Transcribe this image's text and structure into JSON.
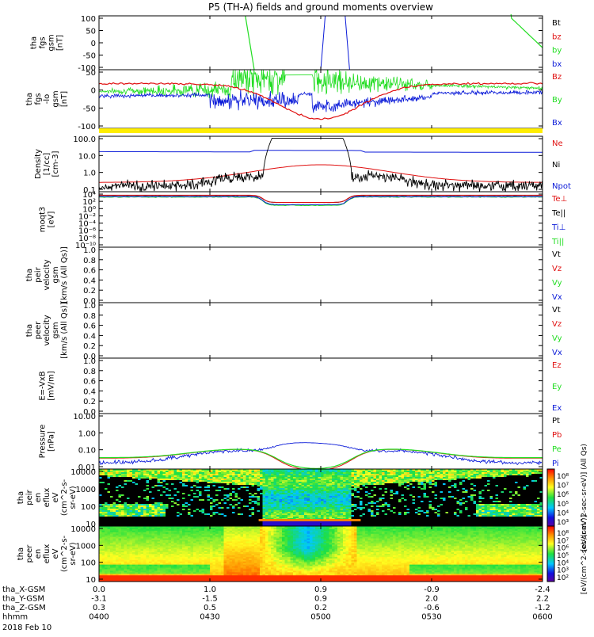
{
  "title": "P5 (TH-A) fields and ground moments overview",
  "date_label": "2018 Feb 10",
  "colors": {
    "black": "#000000",
    "red": "#e01010",
    "green": "#22dd22",
    "blue": "#0a1ad8",
    "yellow": "#ffee00"
  },
  "x_axis": {
    "rows": [
      {
        "label": "tha_X-GSM",
        "ticks": [
          "0.0",
          "1.0",
          "0.9",
          "-0.9",
          "-2.4"
        ]
      },
      {
        "label": "tha_Y-GSM",
        "ticks": [
          "-3.1",
          "-1.5",
          "0.9",
          "2.0",
          "2.2"
        ]
      },
      {
        "label": "tha_Z-GSM",
        "ticks": [
          "0.3",
          "0.5",
          "0.2",
          "-0.6",
          "-1.2"
        ]
      },
      {
        "label": "hhmm",
        "ticks": [
          "0400",
          "0430",
          "0500",
          "0530",
          "0600"
        ]
      }
    ]
  },
  "chart_data": [
    {
      "id": "fgs",
      "type": "line",
      "ylabel": [
        "tha",
        "fgs",
        "gsm",
        "[nT]"
      ],
      "ylim": [
        -100,
        100
      ],
      "yticks": [
        "100",
        "50",
        "0",
        "-50",
        "-100"
      ],
      "legend": [
        {
          "text": "Bt",
          "color": "black"
        },
        {
          "text": "bz",
          "color": "red"
        },
        {
          "text": "by",
          "color": "green"
        },
        {
          "text": "bx",
          "color": "blue"
        }
      ]
    },
    {
      "id": "fgs_lo",
      "type": "line",
      "ylabel": [
        "tha",
        "fgs",
        "-lo",
        "gsm",
        "[nT]"
      ],
      "ylim": [
        -130,
        60
      ],
      "yticks": [
        "50",
        "0",
        "-50",
        "-100"
      ],
      "legend": [
        {
          "text": "Bz",
          "color": "red"
        },
        {
          "text": "By",
          "color": "green"
        },
        {
          "text": "Bx",
          "color": "blue"
        }
      ]
    },
    {
      "id": "density",
      "type": "line",
      "yscale": "log",
      "ylabel": [
        "Density",
        "[1/cc]",
        "[cm-3]"
      ],
      "ylim": [
        0.05,
        200
      ],
      "yticks": [
        "100.0",
        "10.0",
        "1.0",
        "0.1"
      ],
      "legend": [
        {
          "text": "Ne",
          "color": "red"
        },
        {
          "text": "Ni",
          "color": "black"
        },
        {
          "text": "Npot",
          "color": "blue"
        }
      ]
    },
    {
      "id": "temp",
      "type": "line",
      "yscale": "log",
      "ylabel": [
        "moqt3",
        "[eV]"
      ],
      "yticks": [
        "10⁴",
        "10²",
        "10⁰",
        "10⁻²",
        "10⁻⁴",
        "10⁻⁶",
        "10⁻⁸",
        "10⁻¹⁰"
      ],
      "legend": [
        {
          "text": "Te⊥",
          "color": "red"
        },
        {
          "text": "Te||",
          "color": "black"
        },
        {
          "text": "Ti⊥",
          "color": "blue"
        },
        {
          "text": "Ti||",
          "color": "green"
        }
      ]
    },
    {
      "id": "peir_vel",
      "type": "line",
      "ylabel": [
        "tha",
        "peir",
        "velocity",
        "gsm",
        "[km/s (All Qs)]"
      ],
      "ylim": [
        0,
        1
      ],
      "yticks": [
        "1.0",
        "0.8",
        "0.6",
        "0.4",
        "0.2",
        "0.0"
      ],
      "legend": [
        {
          "text": "Vt",
          "color": "black"
        },
        {
          "text": "Vz",
          "color": "red"
        },
        {
          "text": "Vy",
          "color": "green"
        },
        {
          "text": "Vx",
          "color": "blue"
        }
      ]
    },
    {
      "id": "peer_vel",
      "type": "line",
      "ylabel": [
        "tha",
        "peer",
        "velocity",
        "gsm",
        "[km/s (All Qs)]"
      ],
      "ylim": [
        0,
        1
      ],
      "yticks": [
        "1.0",
        "0.8",
        "0.6",
        "0.4",
        "0.2",
        "0.0"
      ],
      "legend": [
        {
          "text": "Vt",
          "color": "black"
        },
        {
          "text": "Vz",
          "color": "red"
        },
        {
          "text": "Vy",
          "color": "green"
        },
        {
          "text": "Vx",
          "color": "blue"
        }
      ]
    },
    {
      "id": "efield",
      "type": "line",
      "ylabel": [
        "E=-VxB",
        "[mV/m]"
      ],
      "ylim": [
        0,
        1
      ],
      "yticks": [
        "1.0",
        "0.8",
        "0.6",
        "0.4",
        "0.2",
        "0.0"
      ],
      "legend": [
        {
          "text": "Ez",
          "color": "red"
        },
        {
          "text": "Ey",
          "color": "green"
        },
        {
          "text": "Ex",
          "color": "blue"
        }
      ]
    },
    {
      "id": "pressure",
      "type": "line",
      "yscale": "log",
      "ylabel": [
        "Pressure",
        "[nPa]"
      ],
      "ylim": [
        0.004,
        25
      ],
      "yticks": [
        "10.00",
        "1.00",
        "0.10",
        "0.01"
      ],
      "legend": [
        {
          "text": "Pt",
          "color": "black"
        },
        {
          "text": "Pb",
          "color": "red"
        },
        {
          "text": "Pe",
          "color": "green"
        },
        {
          "text": "Pi",
          "color": "blue"
        }
      ]
    },
    {
      "id": "peir_en",
      "type": "heatmap",
      "ylabel": [
        "tha",
        "peir",
        "en",
        "eflux",
        "eV",
        "(cm^2-s-",
        "sr-eV)"
      ],
      "yticks": [
        "10000",
        "1000",
        "100",
        "10"
      ],
      "colorbar_ticks": [
        "10⁸",
        "10⁷",
        "10⁶",
        "10⁵",
        "10⁴",
        "10³"
      ],
      "colorbar_label": "[eV/(cm^2-sec-sr-eV)] (All Qs)"
    },
    {
      "id": "peer_en",
      "type": "heatmap",
      "ylabel": [
        "tha",
        "peer",
        "en",
        "eflux",
        "eV",
        "(cm^2-s-",
        "sr-eV)"
      ],
      "yticks": [
        "10000",
        "1000",
        "100",
        "10"
      ],
      "colorbar_ticks": [
        "10⁸",
        "10⁷",
        "10⁶",
        "10⁵",
        "10⁴",
        "10³",
        "10²"
      ],
      "colorbar_label": "[eV/(cm^2-sec-sr-eV)]"
    }
  ]
}
